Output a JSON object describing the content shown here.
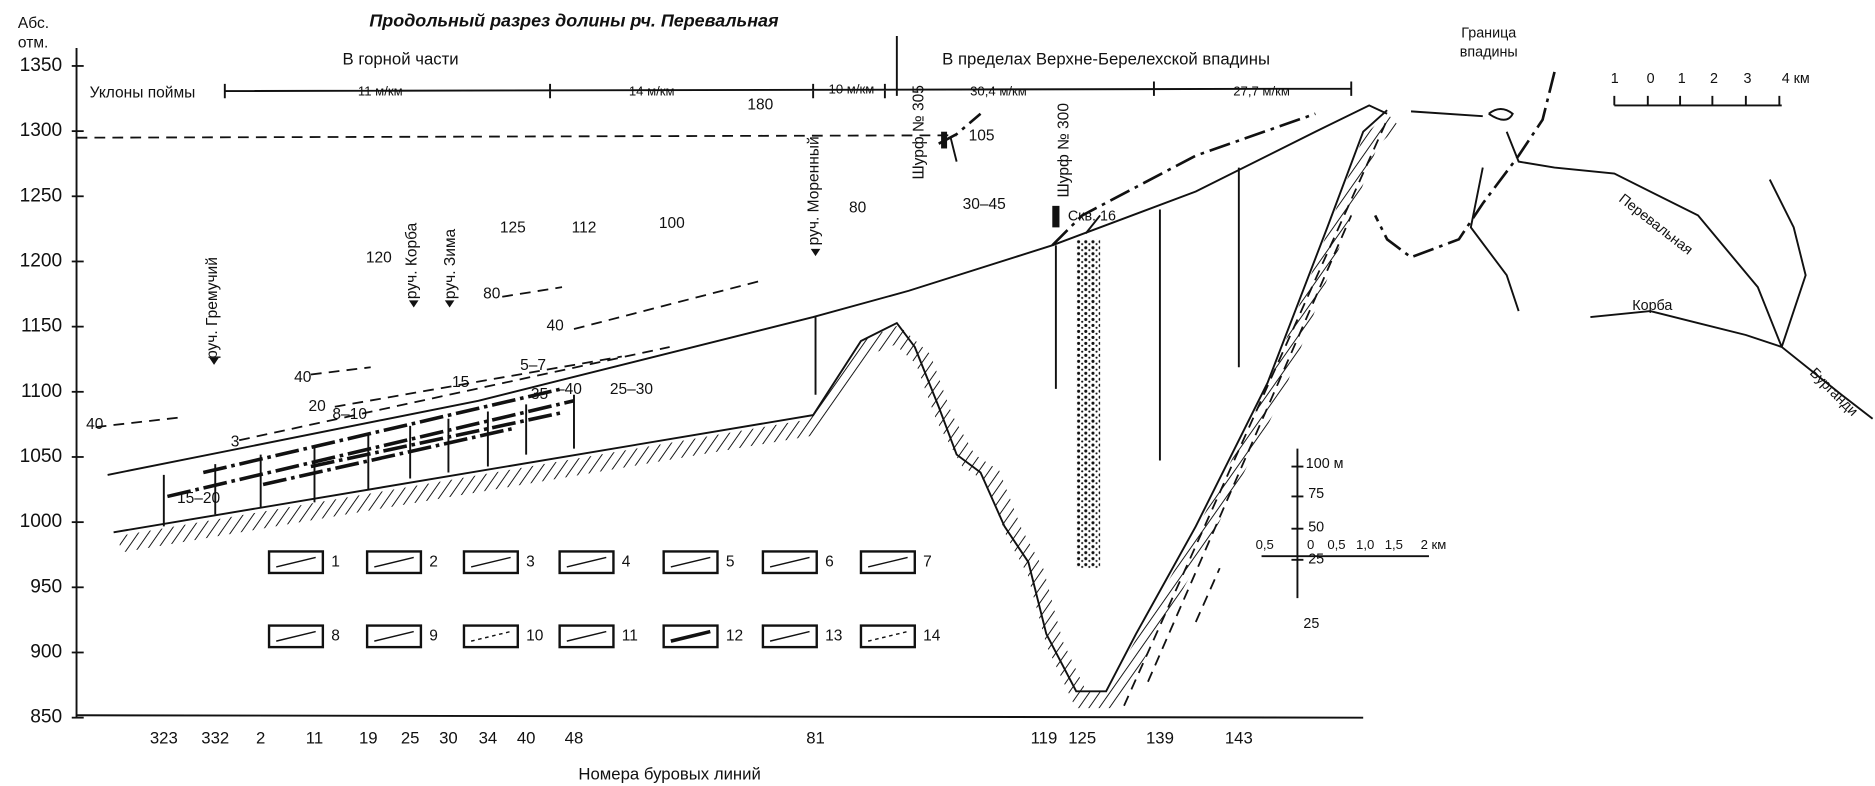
{
  "title": "Продольный разрез долины рч. Перевальная",
  "zones": [
    "В горной части",
    "В пределах Верхне-Берелехской впадины"
  ],
  "slopes": {
    "label": "Уклоны поймы",
    "values": [
      "11 м/км",
      "14 м/км",
      "10 м/км",
      "30,4 м/км",
      "27,7 м/км"
    ]
  },
  "elevation_axis": {
    "label": [
      "Абс.",
      "отм."
    ],
    "ticks": [
      1350,
      1300,
      1250,
      1200,
      1150,
      1100,
      1050,
      1000,
      950,
      900,
      850
    ]
  },
  "boreholes": {
    "label": "Номера буровых линий",
    "lines": [
      323,
      332,
      2,
      11,
      19,
      25,
      30,
      34,
      40,
      48,
      81,
      119,
      125,
      139,
      143
    ]
  },
  "streams": [
    "руч. Гремучий",
    "руч. Корба",
    "руч. Зима",
    "руч. Моренный"
  ],
  "pits": [
    "Шурф № 305",
    "Шурф № 300",
    "Скв. 16"
  ],
  "annotations": [
    "180",
    "105",
    "80",
    "125",
    "112",
    "100",
    "120",
    "80",
    "40",
    "40",
    "20",
    "8–10",
    "15",
    "5–7",
    "35",
    "–40",
    "25–30",
    "3",
    "40",
    "15–20",
    "30–45"
  ],
  "legend": [
    1,
    2,
    3,
    4,
    5,
    6,
    7,
    8,
    9,
    10,
    11,
    12,
    13,
    14
  ],
  "map": {
    "boundary": [
      "Граница",
      "впадины"
    ],
    "rivers": [
      "Перевальная",
      "Корба",
      "Бурганди"
    ]
  },
  "scales": {
    "map": [
      "1",
      "0",
      "1",
      "2",
      "3",
      "4 км"
    ],
    "vertical": [
      "100 м",
      "75",
      "50",
      "25",
      "25"
    ],
    "horizontal": [
      "0,5",
      "0",
      "0,5",
      "1,0",
      "1,5",
      "2 км"
    ]
  }
}
